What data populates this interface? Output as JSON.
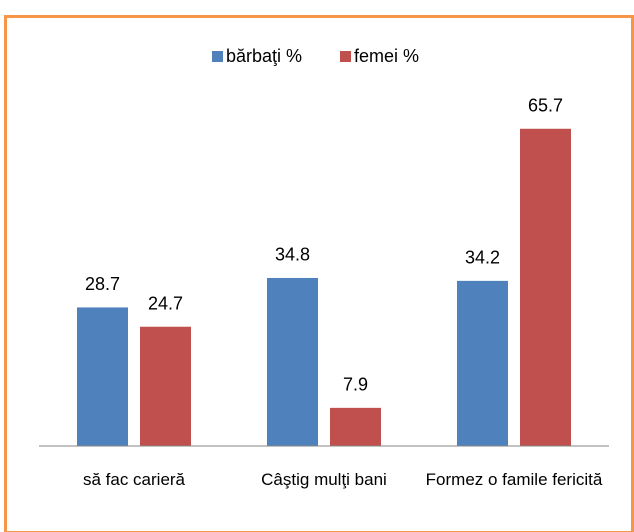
{
  "chart_data": {
    "type": "bar",
    "categories": [
      "să fac carieră",
      "Câştig mulţi bani",
      "Formez o famile fericită"
    ],
    "series": [
      {
        "name": "bărbaţi %",
        "color": "#4f81bd",
        "values": [
          28.7,
          34.8,
          34.2
        ]
      },
      {
        "name": "femei %",
        "color": "#c0504d",
        "values": [
          24.7,
          7.9,
          65.7
        ]
      }
    ],
    "ylim": [
      0,
      70
    ],
    "legend": "top"
  }
}
